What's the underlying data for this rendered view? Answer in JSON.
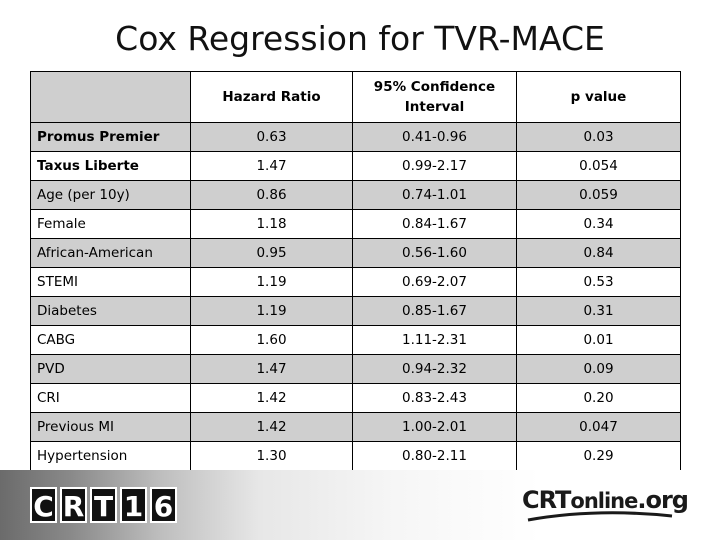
{
  "title": "Cox Regression for TVR-MACE",
  "table": {
    "headers": [
      "",
      "Hazard Ratio",
      "95% Confidence Interval",
      "p value"
    ],
    "rows": [
      {
        "label": "Promus Premier",
        "hr": "0.63",
        "ci": "0.41-0.96",
        "p": "0.03",
        "label_bold": true
      },
      {
        "label": "Taxus Liberte",
        "hr": "1.47",
        "ci": "0.99-2.17",
        "p": "0.054",
        "label_bold": true
      },
      {
        "label": "Age (per 10y)",
        "hr": "0.86",
        "ci": "0.74-1.01",
        "p": "0.059"
      },
      {
        "label": "Female",
        "hr": "1.18",
        "ci": "0.84-1.67",
        "p": "0.34"
      },
      {
        "label": "African-American",
        "hr": "0.95",
        "ci": "0.56-1.60",
        "p": "0.84"
      },
      {
        "label": "STEMI",
        "hr": "1.19",
        "ci": "0.69-2.07",
        "p": "0.53"
      },
      {
        "label": "Diabetes",
        "hr": "1.19",
        "ci": "0.85-1.67",
        "p": "0.31"
      },
      {
        "label": "CABG",
        "hr": "1.60",
        "ci": "1.11-2.31",
        "p": "0.01"
      },
      {
        "label": "PVD",
        "hr": "1.47",
        "ci": "0.94-2.32",
        "p": "0.09"
      },
      {
        "label": "CRI",
        "hr": "1.42",
        "ci": "0.83-2.43",
        "p": "0.20"
      },
      {
        "label": "Previous MI",
        "hr": "1.42",
        "ci": "1.00-2.01",
        "p": "0.047"
      },
      {
        "label": "Hypertension",
        "hr": "1.30",
        "ci": "0.80-2.11",
        "p": "0.29"
      }
    ]
  },
  "footer": {
    "logo_chars": [
      "C",
      "R",
      "T",
      "1",
      "6"
    ],
    "site_prefix": "CRT",
    "site_middle": "online",
    "site_suffix": ".org"
  },
  "colors": {
    "stripe": "#cfcfcf",
    "white": "#ffffff",
    "logo_box": "#111111"
  }
}
